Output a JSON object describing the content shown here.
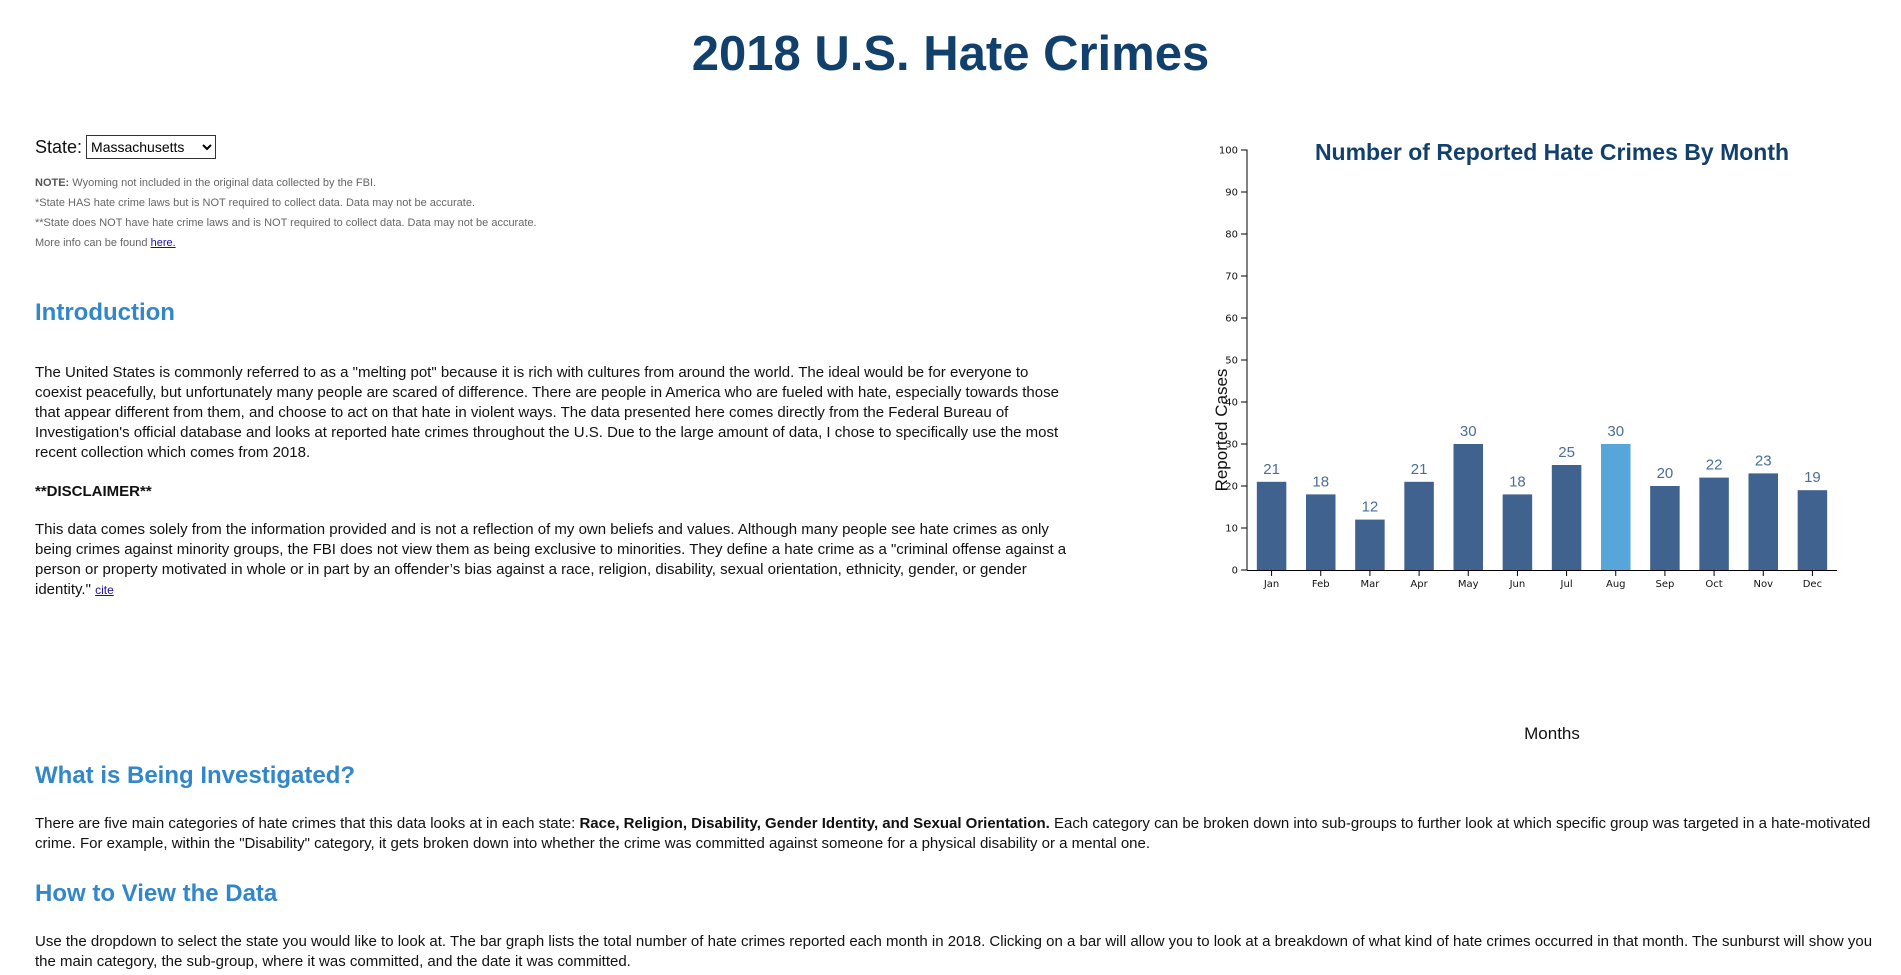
{
  "page": {
    "title": "2018 U.S. Hate Crimes"
  },
  "state_select": {
    "label": "State:",
    "selected": "Massachusetts"
  },
  "notes": {
    "note_label": "NOTE:",
    "note_text": " Wyoming not included in the original data collected by the FBI.",
    "line2": "*State HAS hate crime laws but is NOT required to collect data. Data may not be accurate.",
    "line3": "**State does NOT have hate crime laws and is NOT required to collect data. Data may not be accurate.",
    "line4_prefix": "More info can be found ",
    "line4_link": "here."
  },
  "introduction": {
    "heading": "Introduction",
    "text": "The United States is commonly referred to as a \"melting pot\" because it is rich with cultures from around the world. The ideal would be for everyone to coexist peacefully, but unfortunately many people are scared of difference. There are people in America who are fueled with hate, especially towards those that appear different from them, and choose to act on that hate in violent ways. The data presented here comes directly from the Federal Bureau of Investigation's official database and looks at reported hate crimes throughout the U.S. Due to the large amount of data, I chose to specifically use the most recent collection which comes from 2018.",
    "disclaimer_heading": "**DISCLAIMER**",
    "disclaimer_text": "This data comes solely from the information provided and is not a reflection of my own beliefs and values. Although many people see hate crimes as only being crimes against minority groups, the FBI does not view them as being exclusive to minorities. They define a hate crime as a \"criminal offense against a person or property motivated in whole or in part by an offender’s bias against a race, religion, disability, sexual orientation, ethnicity, gender, or gender identity.\"",
    "cite_link": "cite"
  },
  "investigated": {
    "heading": "What is Being Investigated?",
    "text_before": "There are five main categories of hate crimes that this data looks at in each state: ",
    "text_bold": "Race, Religion, Disability, Gender Identity, and Sexual Orientation.",
    "text_after": " Each category can be broken down into sub-groups to further look at which specific group was targeted in a hate-motivated crime. For example, within the \"Disability\" category, it gets broken down into whether the crime was committed against someone for a physical disability or a mental one."
  },
  "how_to_view": {
    "heading": "How to View the Data",
    "text": "Use the dropdown to select the state you would like to look at. The bar graph lists the total number of hate crimes reported each month in 2018. Clicking on a bar will allow you to look at a breakdown of what kind of hate crimes occurred in that month. The sunburst will show you the main category, the sub-group, where it was committed, and the date it was committed."
  },
  "colors": {
    "bar": "#3f628e",
    "bar_highlight": "#56a6da",
    "data_label": "#4a6e9a"
  },
  "chart_data": {
    "type": "bar",
    "title": "Number of Reported Hate Crimes By Month",
    "xlabel": "Months",
    "ylabel": "Reported Cases",
    "categories": [
      "Jan",
      "Feb",
      "Mar",
      "Apr",
      "May",
      "Jun",
      "Jul",
      "Aug",
      "Sep",
      "Oct",
      "Nov",
      "Dec"
    ],
    "values": [
      21,
      18,
      12,
      21,
      30,
      18,
      25,
      30,
      20,
      22,
      23,
      19
    ],
    "highlighted": "Aug",
    "ylim": [
      0,
      100
    ],
    "yticks": [
      0,
      10,
      20,
      30,
      40,
      50,
      60,
      70,
      80,
      90,
      100
    ],
    "grid": false,
    "data_labels": true
  }
}
